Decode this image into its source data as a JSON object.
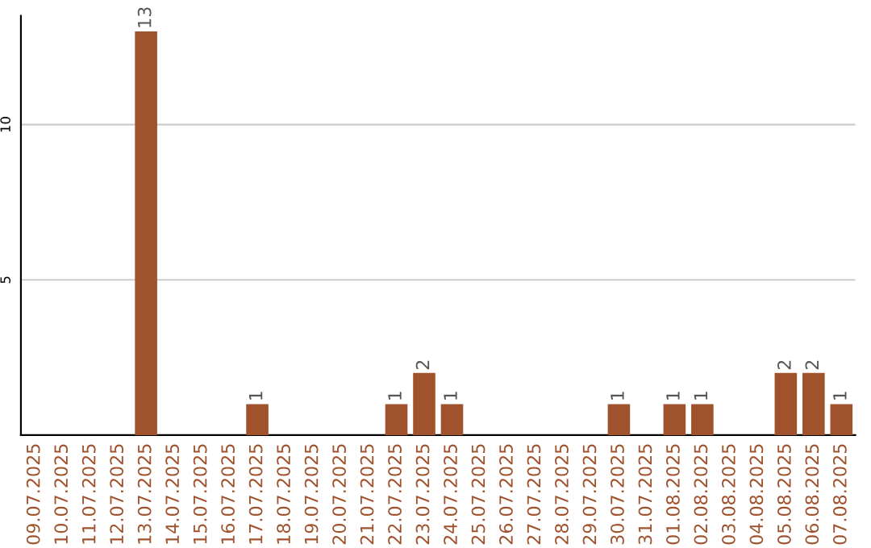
{
  "chart_data": {
    "type": "bar",
    "categories": [
      "09.07.2025",
      "10.07.2025",
      "11.07.2025",
      "12.07.2025",
      "13.07.2025",
      "14.07.2025",
      "15.07.2025",
      "16.07.2025",
      "17.07.2025",
      "18.07.2025",
      "19.07.2025",
      "20.07.2025",
      "21.07.2025",
      "22.07.2025",
      "23.07.2025",
      "24.07.2025",
      "25.07.2025",
      "26.07.2025",
      "27.07.2025",
      "28.07.2025",
      "29.07.2025",
      "30.07.2025",
      "31.07.2025",
      "01.08.2025",
      "02.08.2025",
      "03.08.2025",
      "04.08.2025",
      "05.08.2025",
      "06.08.2025",
      "07.08.2025"
    ],
    "values": [
      0,
      0,
      0,
      0,
      13,
      0,
      0,
      0,
      1,
      0,
      0,
      0,
      0,
      1,
      2,
      1,
      0,
      0,
      0,
      0,
      0,
      1,
      0,
      1,
      1,
      0,
      0,
      2,
      2,
      1
    ],
    "value_labels": [
      null,
      null,
      null,
      null,
      "13",
      null,
      null,
      null,
      "1",
      null,
      null,
      null,
      null,
      "1",
      "2",
      "1",
      null,
      null,
      null,
      null,
      null,
      "1",
      null,
      "1",
      "1",
      null,
      null,
      "2",
      "2",
      "1"
    ],
    "color": "#a0522d",
    "ylim": [
      0,
      13.5
    ],
    "yticks": [
      5,
      10
    ],
    "grid": "y",
    "legend": false
  }
}
